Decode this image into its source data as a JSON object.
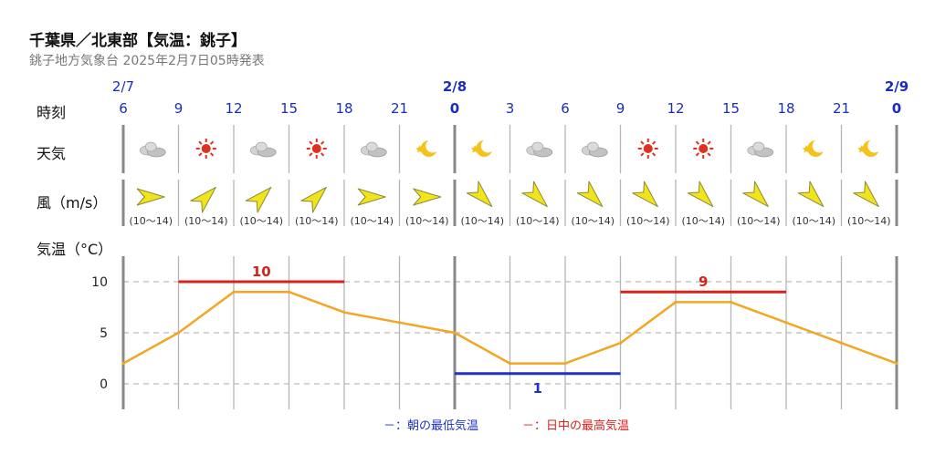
{
  "title": "千葉県／北東部【気温：銚子】",
  "subtitle": "銚子地方気象台 2025年2月7日05時発表",
  "row_labels": {
    "time": "時刻",
    "weather": "天気",
    "wind": "風（m/s）",
    "temp": "気温（°C）"
  },
  "colors": {
    "line": "#f2a623",
    "max": "#d8211a",
    "min": "#1f32c0",
    "date": "#1a2dbf",
    "grid": "#aaaaaa"
  },
  "slots": [
    {
      "date": "2/7",
      "hour": "6",
      "weather": "cloud-icon",
      "wind_dir": "E",
      "wind": "(10～14)"
    },
    {
      "date": "",
      "hour": "9",
      "weather": "sun-icon",
      "wind_dir": "SW",
      "wind": "(10～14)"
    },
    {
      "date": "",
      "hour": "12",
      "weather": "cloud-icon",
      "wind_dir": "SW",
      "wind": "(10～14)"
    },
    {
      "date": "",
      "hour": "15",
      "weather": "sun-icon",
      "wind_dir": "SW",
      "wind": "(10～14)"
    },
    {
      "date": "",
      "hour": "18",
      "weather": "cloud-icon",
      "wind_dir": "E",
      "wind": "(10～14)"
    },
    {
      "date": "",
      "hour": "21",
      "weather": "moon-icon",
      "wind_dir": "E",
      "wind": "(10～14)"
    },
    {
      "date": "2/8",
      "hour": "0",
      "weather": "moon-icon",
      "wind_dir": "NE",
      "wind": "(10～14)"
    },
    {
      "date": "",
      "hour": "3",
      "weather": "cloud-icon",
      "wind_dir": "NE",
      "wind": "(10～14)"
    },
    {
      "date": "",
      "hour": "6",
      "weather": "cloud-icon",
      "wind_dir": "NE",
      "wind": "(10～14)"
    },
    {
      "date": "",
      "hour": "9",
      "weather": "sun-icon",
      "wind_dir": "NE",
      "wind": "(10～14)"
    },
    {
      "date": "",
      "hour": "12",
      "weather": "sun-icon",
      "wind_dir": "NE",
      "wind": "(10～14)"
    },
    {
      "date": "",
      "hour": "15",
      "weather": "cloud-icon",
      "wind_dir": "NE",
      "wind": "(10～14)"
    },
    {
      "date": "",
      "hour": "18",
      "weather": "moon-icon",
      "wind_dir": "NE",
      "wind": "(10～14)"
    },
    {
      "date": "",
      "hour": "21",
      "weather": "moon-icon",
      "wind_dir": "NE",
      "wind": "(10～14)"
    },
    {
      "date": "2/9",
      "hour": "0",
      "weather": "",
      "wind_dir": "",
      "wind": ""
    }
  ],
  "chart_data": {
    "type": "line",
    "x": [
      "2/7 6",
      "9",
      "12",
      "15",
      "18",
      "21",
      "2/8 0",
      "3",
      "6",
      "9",
      "12",
      "15",
      "18",
      "21",
      "2/9 0"
    ],
    "series": [
      {
        "values": [
          2,
          5,
          9,
          9,
          7,
          6,
          5,
          2,
          2,
          4,
          8,
          8,
          6,
          4,
          2
        ]
      }
    ],
    "ylim": [
      -2,
      12
    ],
    "yticks": [
      0,
      5,
      10
    ],
    "grid": true,
    "bands": [
      {
        "kind": "max",
        "label": "10",
        "value": 10,
        "from": 1,
        "to": 4
      },
      {
        "kind": "min",
        "label": "1",
        "value": 1,
        "from": 6,
        "to": 9
      },
      {
        "kind": "max",
        "label": "9",
        "value": 9,
        "from": 9,
        "to": 12
      }
    ],
    "legend": [
      {
        "kind": "min",
        "label": "－：朝の最低気温"
      },
      {
        "kind": "max",
        "label": "－：日中の最高気温"
      }
    ]
  }
}
